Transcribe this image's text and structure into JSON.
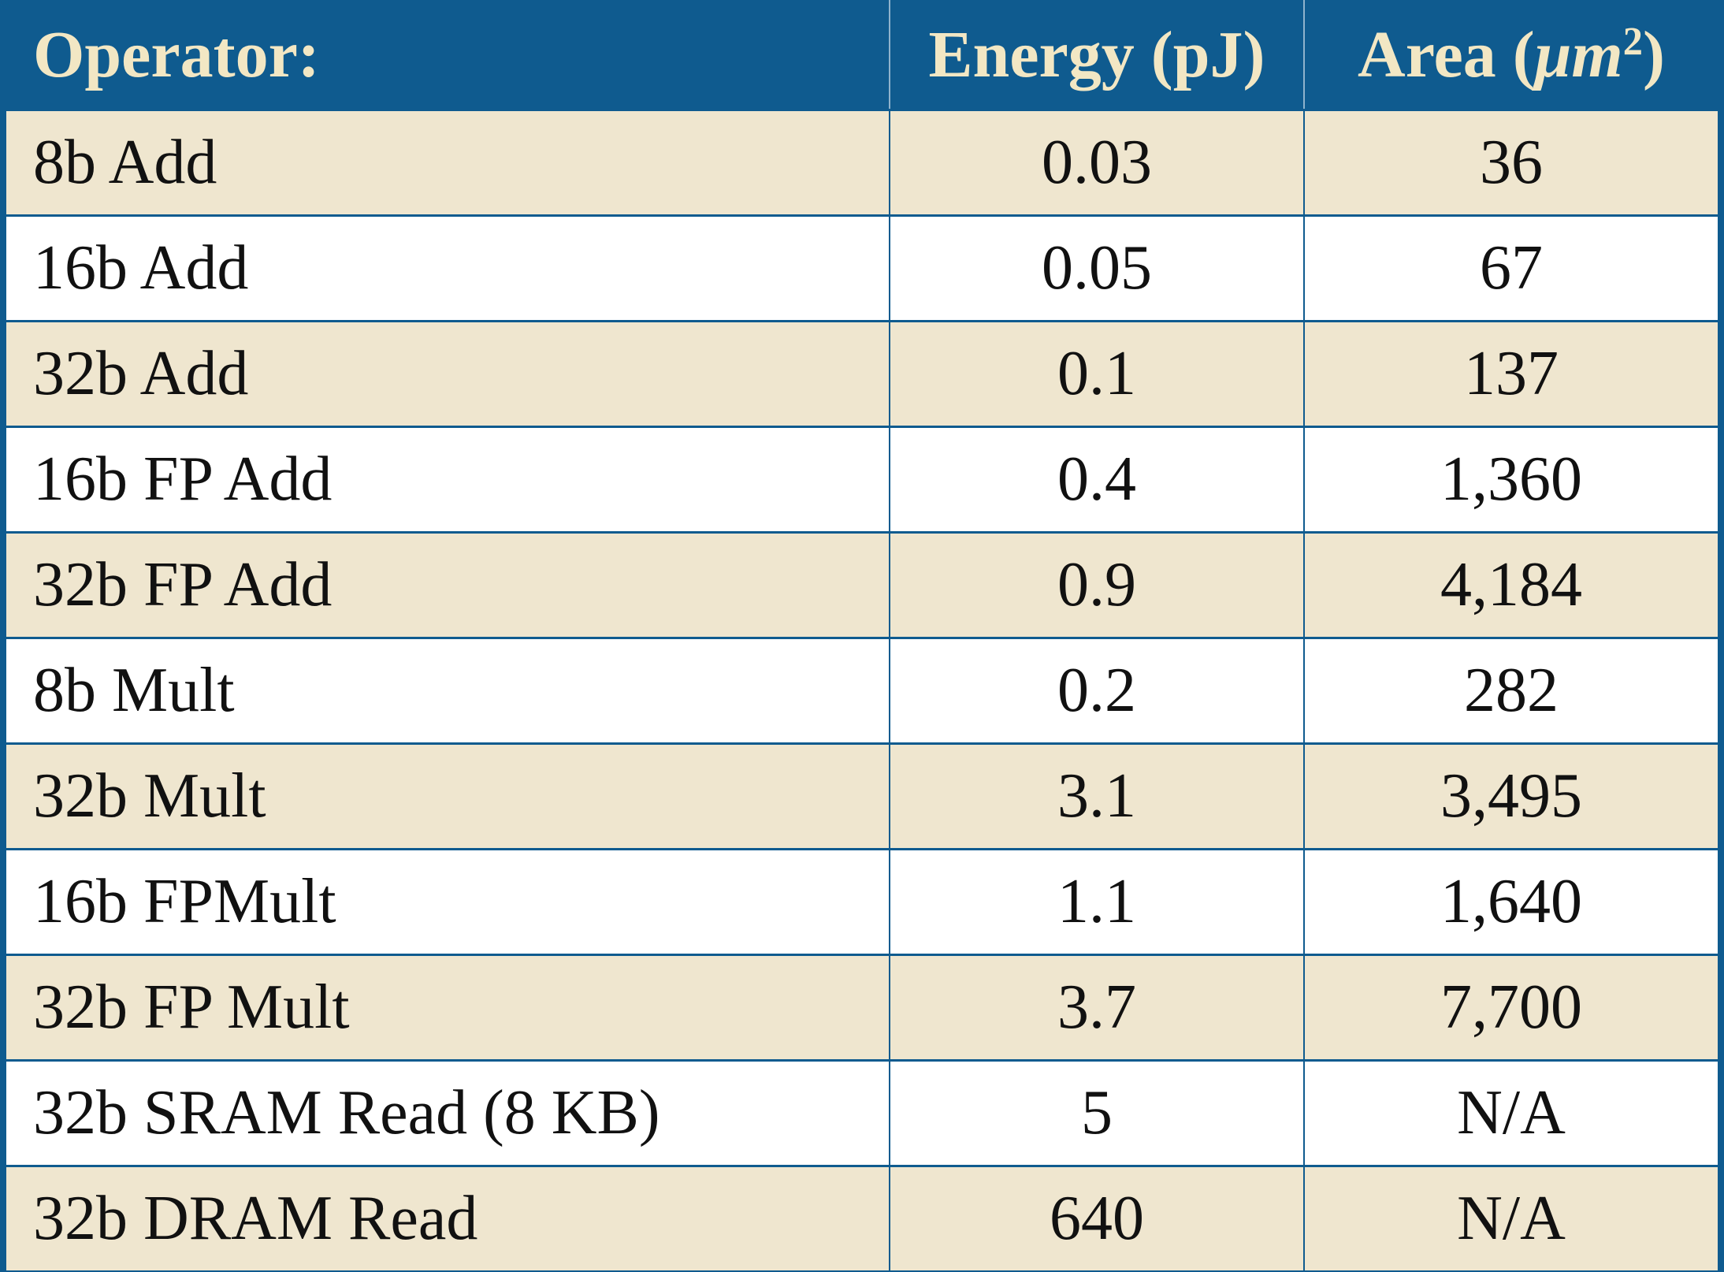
{
  "header": {
    "operator": "Operator:",
    "energy": "Energy (pJ)",
    "area_prefix": "Area (",
    "area_unit": "μm",
    "area_exp": "2",
    "area_suffix": ")"
  },
  "rows": [
    {
      "operator": "8b Add",
      "energy": "0.03",
      "area": "36"
    },
    {
      "operator": "16b Add",
      "energy": "0.05",
      "area": "67"
    },
    {
      "operator": "32b Add",
      "energy": "0.1",
      "area": "137"
    },
    {
      "operator": "16b FP Add",
      "energy": "0.4",
      "area": "1,360"
    },
    {
      "operator": "32b FP Add",
      "energy": "0.9",
      "area": "4,184"
    },
    {
      "operator": "8b Mult",
      "energy": "0.2",
      "area": "282"
    },
    {
      "operator": "32b Mult",
      "energy": "3.1",
      "area": "3,495"
    },
    {
      "operator": "16b FPMult",
      "energy": "1.1",
      "area": "1,640"
    },
    {
      "operator": "32b FP Mult",
      "energy": "3.7",
      "area": "7,700"
    },
    {
      "operator": "32b SRAM Read (8 KB)",
      "energy": "5",
      "area": "N/A"
    },
    {
      "operator": "32b DRAM Read",
      "energy": "640",
      "area": "N/A"
    }
  ],
  "colors": {
    "header_bg": "#0f5b8f",
    "header_text": "#f2e7c4",
    "row_alt_bg": "#efe6cf",
    "row_bg": "#ffffff"
  }
}
